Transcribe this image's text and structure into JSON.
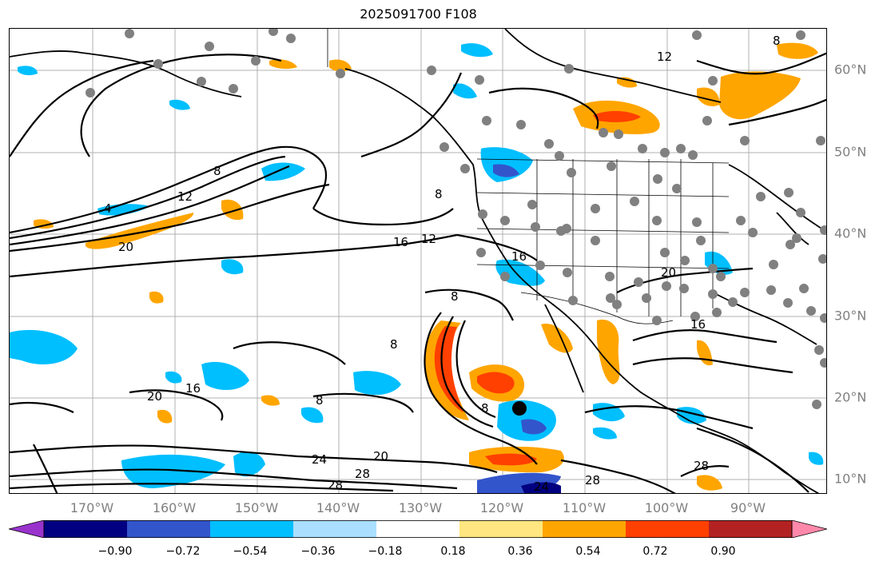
{
  "title": "2025091700 F108",
  "lat_labels": [
    "60°N",
    "50°N",
    "40°N",
    "30°N",
    "20°N",
    "10°N"
  ],
  "lon_labels": [
    "170°W",
    "160°W",
    "150°W",
    "140°W",
    "130°W",
    "120°W",
    "110°W",
    "100°W",
    "90°W"
  ],
  "colorbar": {
    "colors": [
      "#9933cc",
      "#000080",
      "#3355cc",
      "#00bfff",
      "#aadfff",
      "#ffffff",
      "#ffe680",
      "#ffa500",
      "#ff4000",
      "#b22222",
      "#ff88aa"
    ],
    "ticks": [
      "−0.90",
      "−0.72",
      "−0.54",
      "−0.36",
      "−0.18",
      "0.18",
      "0.36",
      "0.54",
      "0.72",
      "0.90"
    ]
  },
  "contour_labels": [
    "8",
    "12",
    "4",
    "20",
    "16",
    "12",
    "8",
    "8",
    "8",
    "8",
    "16",
    "8",
    "20",
    "24",
    "28",
    "28",
    "24",
    "28",
    "28",
    "20",
    "16",
    "20",
    "16",
    "12",
    "8"
  ],
  "storm_marker": "storm-center-dot"
}
